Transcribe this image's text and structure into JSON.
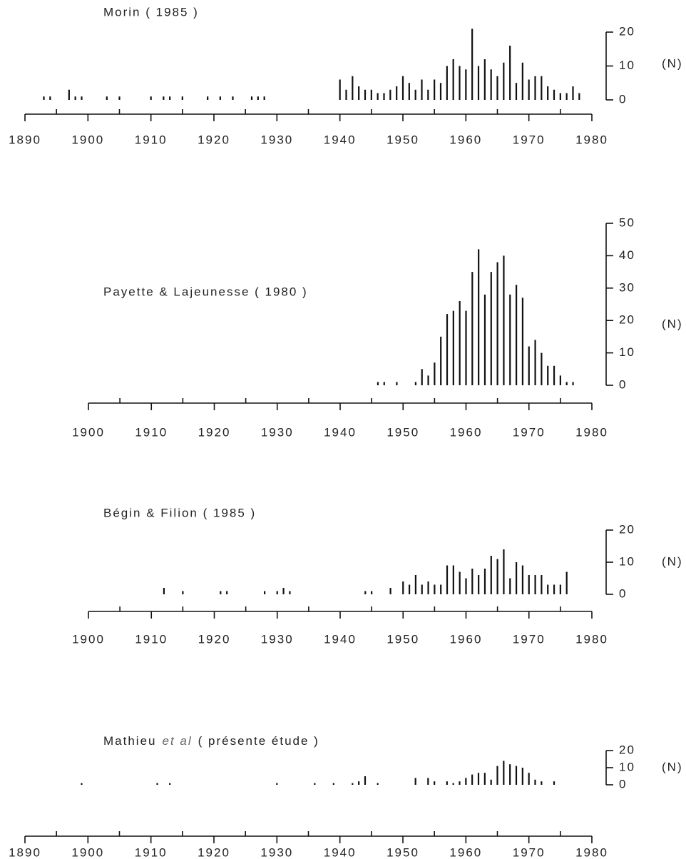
{
  "chart_data": [
    {
      "type": "bar",
      "title": "Morin ( 1985 )",
      "y_label": "(N)",
      "x": [
        1893,
        1894,
        1897,
        1898,
        1899,
        1903,
        1905,
        1910,
        1912,
        1913,
        1915,
        1919,
        1921,
        1923,
        1926,
        1927,
        1928,
        1940,
        1941,
        1942,
        1943,
        1944,
        1945,
        1946,
        1947,
        1948,
        1949,
        1950,
        1951,
        1952,
        1953,
        1954,
        1955,
        1956,
        1957,
        1958,
        1959,
        1960,
        1961,
        1962,
        1963,
        1964,
        1965,
        1966,
        1967,
        1968,
        1969,
        1970,
        1971,
        1972,
        1973,
        1974,
        1975,
        1976,
        1977,
        1978
      ],
      "values": [
        1,
        1,
        3,
        1,
        1,
        1,
        1,
        1,
        1,
        1,
        1,
        1,
        1,
        1,
        1,
        1,
        1,
        6,
        3,
        7,
        4,
        3,
        3,
        2,
        2,
        3,
        4,
        7,
        5,
        3,
        6,
        3,
        6,
        5,
        10,
        12,
        10,
        9,
        21,
        10,
        12,
        9,
        7,
        11,
        16,
        5,
        11,
        6,
        7,
        7,
        4,
        3,
        2,
        2,
        4,
        2
      ],
      "xlim": [
        1890,
        1980
      ],
      "xticks": [
        1890,
        1900,
        1910,
        1920,
        1930,
        1940,
        1950,
        1960,
        1970,
        1980
      ],
      "xticks_minor": [
        1895,
        1905,
        1915,
        1925,
        1935,
        1945,
        1955,
        1965,
        1975
      ],
      "ylim": [
        0,
        20
      ],
      "yticks": [
        0,
        10,
        20
      ],
      "color": "#111111"
    },
    {
      "type": "bar",
      "title": "Payette & Lajeunesse ( 1980 )",
      "y_label": "(N)",
      "x": [
        1946,
        1947,
        1949,
        1952,
        1953,
        1954,
        1955,
        1956,
        1957,
        1958,
        1959,
        1960,
        1961,
        1962,
        1963,
        1964,
        1965,
        1966,
        1967,
        1968,
        1969,
        1970,
        1971,
        1972,
        1973,
        1974,
        1975,
        1976,
        1977
      ],
      "values": [
        1,
        1,
        1,
        1,
        5,
        3,
        7,
        15,
        22,
        23,
        26,
        23,
        35,
        42,
        28,
        35,
        38,
        40,
        28,
        31,
        27,
        12,
        14,
        10,
        6,
        6,
        3,
        1,
        1
      ],
      "xlim": [
        1900,
        1980
      ],
      "xticks": [
        1900,
        1910,
        1920,
        1930,
        1940,
        1950,
        1960,
        1970,
        1980
      ],
      "xticks_minor": [
        1905,
        1915,
        1925,
        1935,
        1945,
        1955,
        1965,
        1975
      ],
      "ylim": [
        0,
        50
      ],
      "yticks": [
        0,
        10,
        20,
        30,
        40,
        50
      ],
      "color": "#111111"
    },
    {
      "type": "bar",
      "title": "Bégin & Filion ( 1985 )",
      "y_label": "(N)",
      "x": [
        1912,
        1915,
        1921,
        1922,
        1928,
        1930,
        1931,
        1932,
        1944,
        1945,
        1948,
        1950,
        1951,
        1952,
        1953,
        1954,
        1955,
        1956,
        1957,
        1958,
        1959,
        1960,
        1961,
        1962,
        1963,
        1964,
        1965,
        1966,
        1967,
        1968,
        1969,
        1970,
        1971,
        1972,
        1973,
        1974,
        1975,
        1976
      ],
      "values": [
        2,
        1,
        1,
        1,
        1,
        1,
        2,
        1,
        1,
        1,
        2,
        4,
        3,
        6,
        3,
        4,
        3,
        3,
        9,
        9,
        7,
        5,
        8,
        6,
        8,
        12,
        11,
        14,
        5,
        10,
        9,
        6,
        6,
        6,
        3,
        3,
        3,
        7
      ],
      "xlim": [
        1900,
        1980
      ],
      "xticks": [
        1900,
        1910,
        1920,
        1930,
        1940,
        1950,
        1960,
        1970,
        1980
      ],
      "xticks_minor": [
        1905,
        1915,
        1925,
        1935,
        1945,
        1955,
        1965,
        1975
      ],
      "ylim": [
        0,
        20
      ],
      "yticks": [
        0,
        10,
        20
      ],
      "color": "#111111"
    },
    {
      "type": "bar",
      "title": [
        "Mathieu",
        "et al",
        "( présente étude )"
      ],
      "y_label": "(N)",
      "x": [
        1899,
        1911,
        1913,
        1930,
        1936,
        1939,
        1942,
        1943,
        1944,
        1946,
        1952,
        1954,
        1955,
        1957,
        1958,
        1959,
        1960,
        1961,
        1962,
        1963,
        1964,
        1965,
        1966,
        1967,
        1968,
        1969,
        1970,
        1971,
        1972,
        1974
      ],
      "values": [
        1,
        1,
        1,
        1,
        1,
        1,
        1,
        2,
        5,
        1,
        4,
        4,
        2,
        2,
        1,
        2,
        4,
        6,
        7,
        7,
        3,
        11,
        14,
        12,
        11,
        10,
        7,
        3,
        2,
        2
      ],
      "xlim": [
        1890,
        1980
      ],
      "xticks": [
        1890,
        1900,
        1910,
        1920,
        1930,
        1940,
        1950,
        1960,
        1970,
        1980
      ],
      "xticks_minor": [
        1895,
        1905,
        1915,
        1925,
        1935,
        1945,
        1955,
        1965,
        1975
      ],
      "ylim": [
        0,
        20
      ],
      "yticks": [
        0,
        10,
        20
      ],
      "color": "#111111"
    }
  ]
}
